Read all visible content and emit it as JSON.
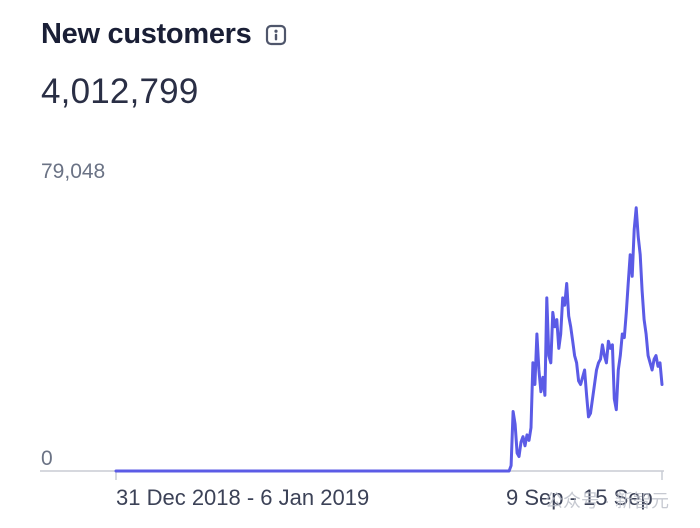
{
  "card": {
    "title": "New customers",
    "value": "4,012,799"
  },
  "icons": {
    "info": "info-icon"
  },
  "colors": {
    "line": "#5b5be6",
    "axis": "#c9ccd4",
    "text": "#1a1f36",
    "muted": "#6b7385"
  },
  "watermark": "公众号 · 新智元",
  "chart_data": {
    "type": "line",
    "title": "",
    "xlabel": "",
    "ylabel": "",
    "ylim": [
      0,
      79048
    ],
    "y_tick_labels": [
      "79,048",
      "0"
    ],
    "x_tick_labels": [
      "31 Dec 2018 - 6 Jan 2019",
      "9 Sep - 15 Sep"
    ],
    "x_range": [
      "2018-12-31",
      "2019-09-15"
    ],
    "x_granularity": "day",
    "series": [
      {
        "values": [
          0,
          0,
          0,
          0,
          0,
          0,
          0,
          0,
          0,
          0,
          0,
          0,
          0,
          0,
          0,
          0,
          0,
          0,
          0,
          0,
          0,
          0,
          0,
          0,
          0,
          0,
          0,
          0,
          0,
          0,
          0,
          0,
          0,
          0,
          0,
          0,
          0,
          0,
          0,
          0,
          0,
          0,
          0,
          0,
          0,
          0,
          0,
          0,
          0,
          0,
          0,
          0,
          0,
          0,
          0,
          0,
          0,
          0,
          0,
          0,
          0,
          0,
          0,
          0,
          0,
          0,
          0,
          0,
          0,
          0,
          0,
          0,
          0,
          0,
          0,
          0,
          0,
          0,
          0,
          0,
          0,
          0,
          0,
          0,
          0,
          0,
          0,
          0,
          0,
          0,
          0,
          0,
          0,
          0,
          0,
          0,
          0,
          0,
          0,
          0,
          0,
          0,
          0,
          0,
          0,
          0,
          0,
          0,
          0,
          0,
          0,
          0,
          0,
          0,
          0,
          0,
          0,
          0,
          0,
          0,
          0,
          0,
          0,
          0,
          0,
          0,
          0,
          0,
          0,
          0,
          0,
          0,
          0,
          0,
          0,
          0,
          0,
          0,
          0,
          0,
          0,
          0,
          0,
          0,
          0,
          0,
          0,
          0,
          0,
          0,
          0,
          0,
          0,
          0,
          0,
          0,
          0,
          0,
          0,
          0,
          0,
          0,
          0,
          0,
          0,
          0,
          0,
          0,
          0,
          0,
          0,
          0,
          0,
          0,
          0,
          0,
          0,
          0,
          0,
          0,
          0,
          0,
          0,
          0,
          0,
          0,
          0,
          0,
          0,
          0,
          0,
          0,
          0,
          0,
          0,
          0,
          0,
          0,
          0,
          1500,
          16500,
          13000,
          5000,
          4000,
          8000,
          9500,
          7000,
          10000,
          8500,
          12000,
          30000,
          24000,
          38000,
          28000,
          22000,
          26000,
          21000,
          48000,
          32000,
          30000,
          44000,
          40000,
          42000,
          34000,
          38000,
          48000,
          46000,
          52000,
          43000,
          40000,
          36000,
          32000,
          30000,
          25000,
          24000,
          26000,
          28000,
          21000,
          15000,
          16000,
          20000,
          24000,
          28000,
          30000,
          31000,
          35000,
          32000,
          30000,
          36000,
          34000,
          35000,
          20000,
          17000,
          28000,
          32000,
          38000,
          37000,
          44000,
          52000,
          60000,
          54000,
          67000,
          73000,
          65000,
          60000,
          50000,
          42000,
          38000,
          32000,
          30000,
          28000,
          31000,
          32000,
          29000,
          30000,
          24000
        ]
      }
    ]
  }
}
